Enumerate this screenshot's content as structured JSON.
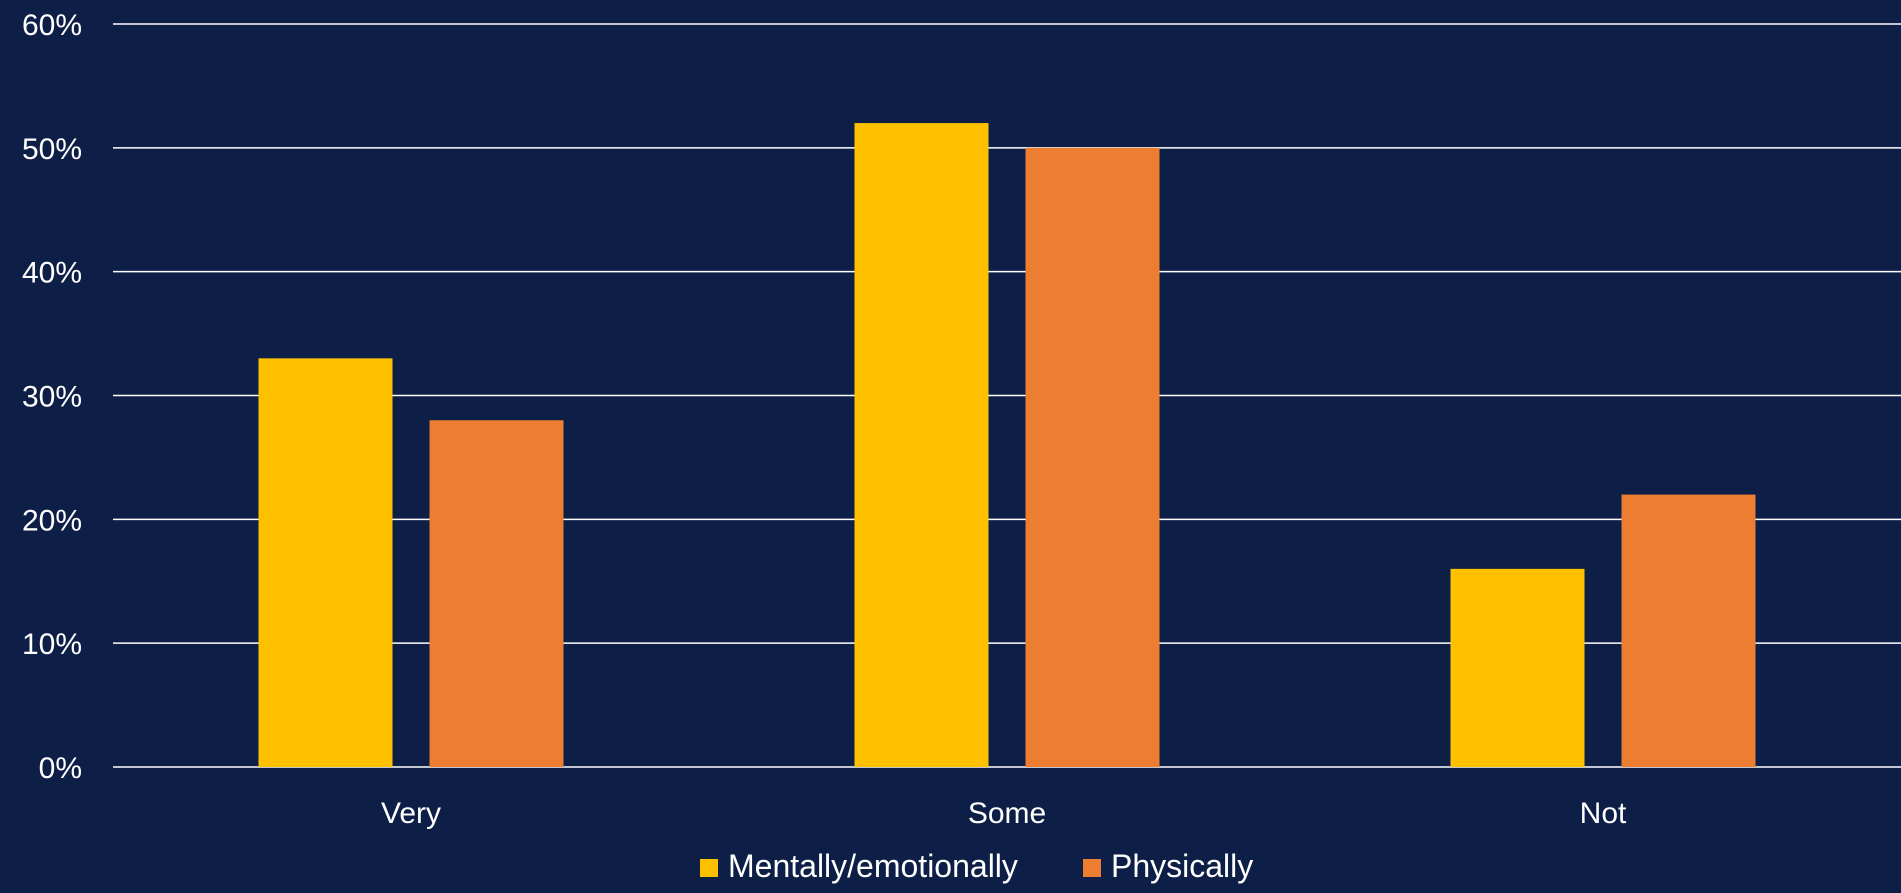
{
  "colors": {
    "background": "#0e1f47",
    "gridline": "#ffffff",
    "text": "#ffffff"
  },
  "chart_data": {
    "type": "bar",
    "categories": [
      "Very",
      "Some",
      "Not"
    ],
    "series": [
      {
        "name": "Mentally/emotionally",
        "color": "#ffc000",
        "values": [
          33,
          52,
          16
        ]
      },
      {
        "name": "Physically",
        "color": "#ed7d31",
        "values": [
          28,
          50,
          22
        ]
      }
    ],
    "ylim": [
      0,
      60
    ],
    "yticks": [
      {
        "value": 0,
        "label": "0%"
      },
      {
        "value": 10,
        "label": "10%"
      },
      {
        "value": 20,
        "label": "20%"
      },
      {
        "value": 30,
        "label": "30%"
      },
      {
        "value": 40,
        "label": "40%"
      },
      {
        "value": 50,
        "label": "50%"
      },
      {
        "value": 60,
        "label": "60%"
      }
    ],
    "grid": true,
    "legend_position": "bottom-center",
    "title": "",
    "xlabel": "",
    "ylabel": ""
  }
}
